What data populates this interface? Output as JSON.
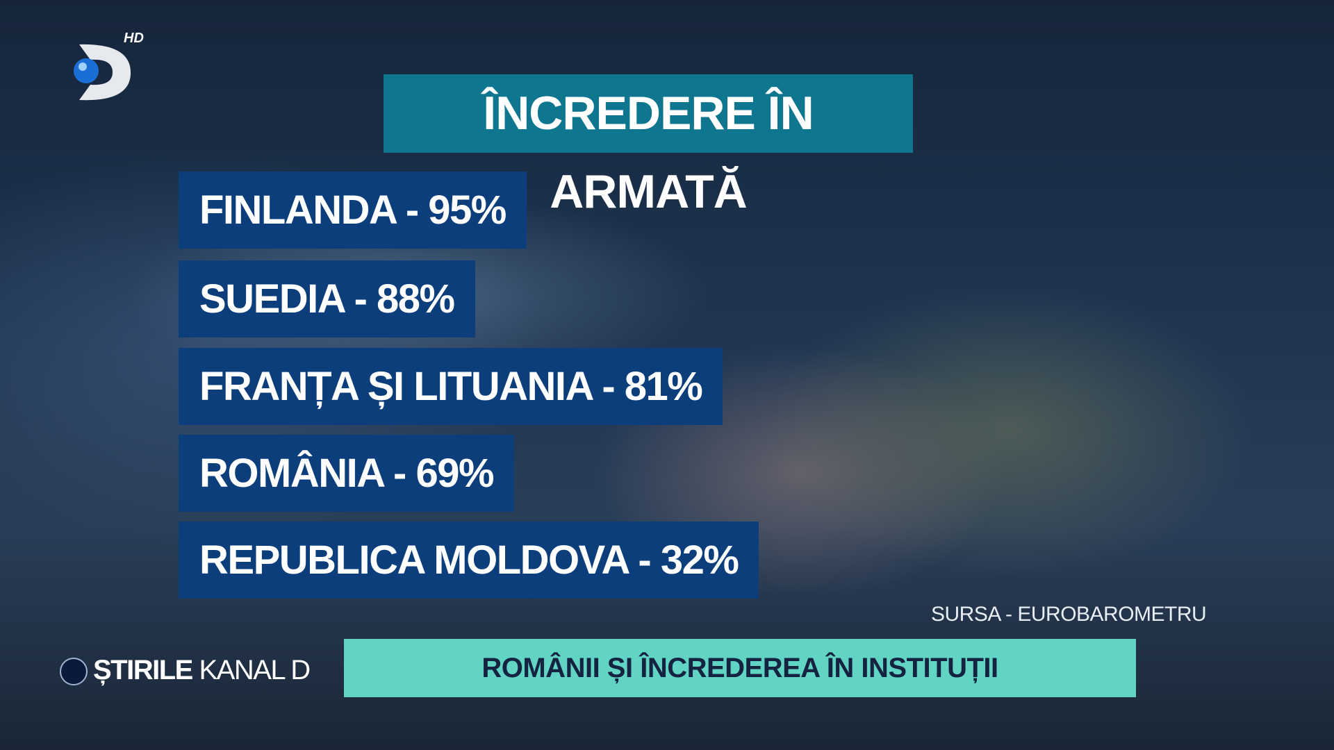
{
  "logo": {
    "badge": "HD"
  },
  "title": "ÎNCREDERE ÎN ARMATĂ",
  "items": [
    "FINLANDA - 95%",
    "SUEDIA - 88%",
    "FRANȚA ȘI LITUANIA - 81%",
    "ROMÂNIA - 69%",
    "REPUBLICA MOLDOVA - 32%"
  ],
  "source": "SURSA - EUROBAROMETRU",
  "ticker": {
    "brand_bold": "ȘTIRILE",
    "brand_light": "KANAL D",
    "headline": "ROMÂNII ȘI ÎNCREDEREA ÎN INSTITUȚII"
  }
}
